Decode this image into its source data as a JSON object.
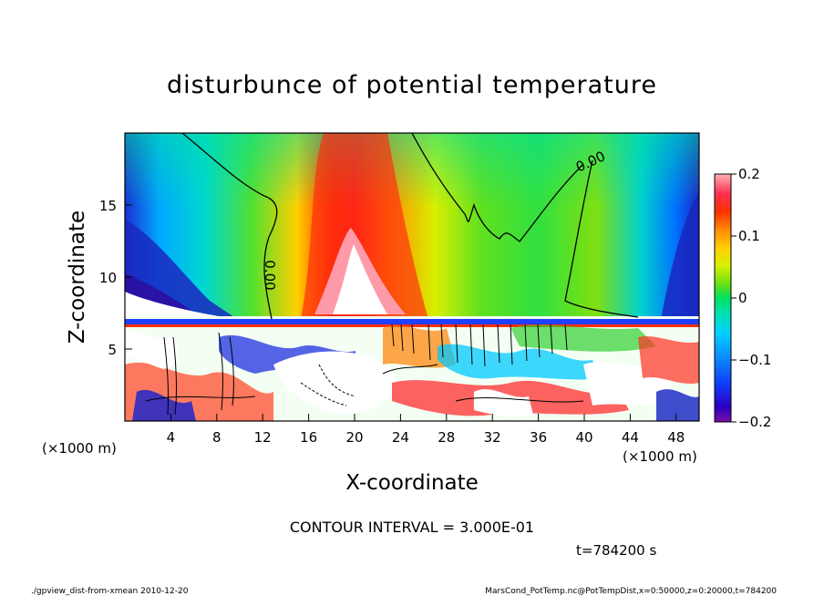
{
  "chart_data": {
    "type": "heatmap",
    "title": "disturbunce of potential temperature",
    "xlabel": "X-coordinate",
    "ylabel": "Z-coordinate",
    "x_unit": "(×1000 m)",
    "z_unit": "(×1000 m)",
    "xlim": [
      0,
      50
    ],
    "zlim": [
      0,
      20
    ],
    "x_ticks": [
      "4",
      "8",
      "12",
      "16",
      "20",
      "24",
      "28",
      "32",
      "36",
      "40",
      "44",
      "48"
    ],
    "z_ticks": [
      "5",
      "10",
      "15"
    ],
    "colorbar": {
      "range": [
        -0.2,
        0.2
      ],
      "ticks": [
        "0.2",
        "0.1",
        "0",
        "−0.1",
        "−0.2"
      ]
    },
    "contour_label": "0.00",
    "contour_interval": "CONTOUR INTERVAL = 3.000E-01",
    "time": "t=784200 s",
    "footer_left": "./gpview_dist-from-xmean  2010-12-20",
    "footer_right": "MarsCond_PotTemp.nc@PotTempDist,x=0:50000,z=0:20000,t=784200"
  }
}
